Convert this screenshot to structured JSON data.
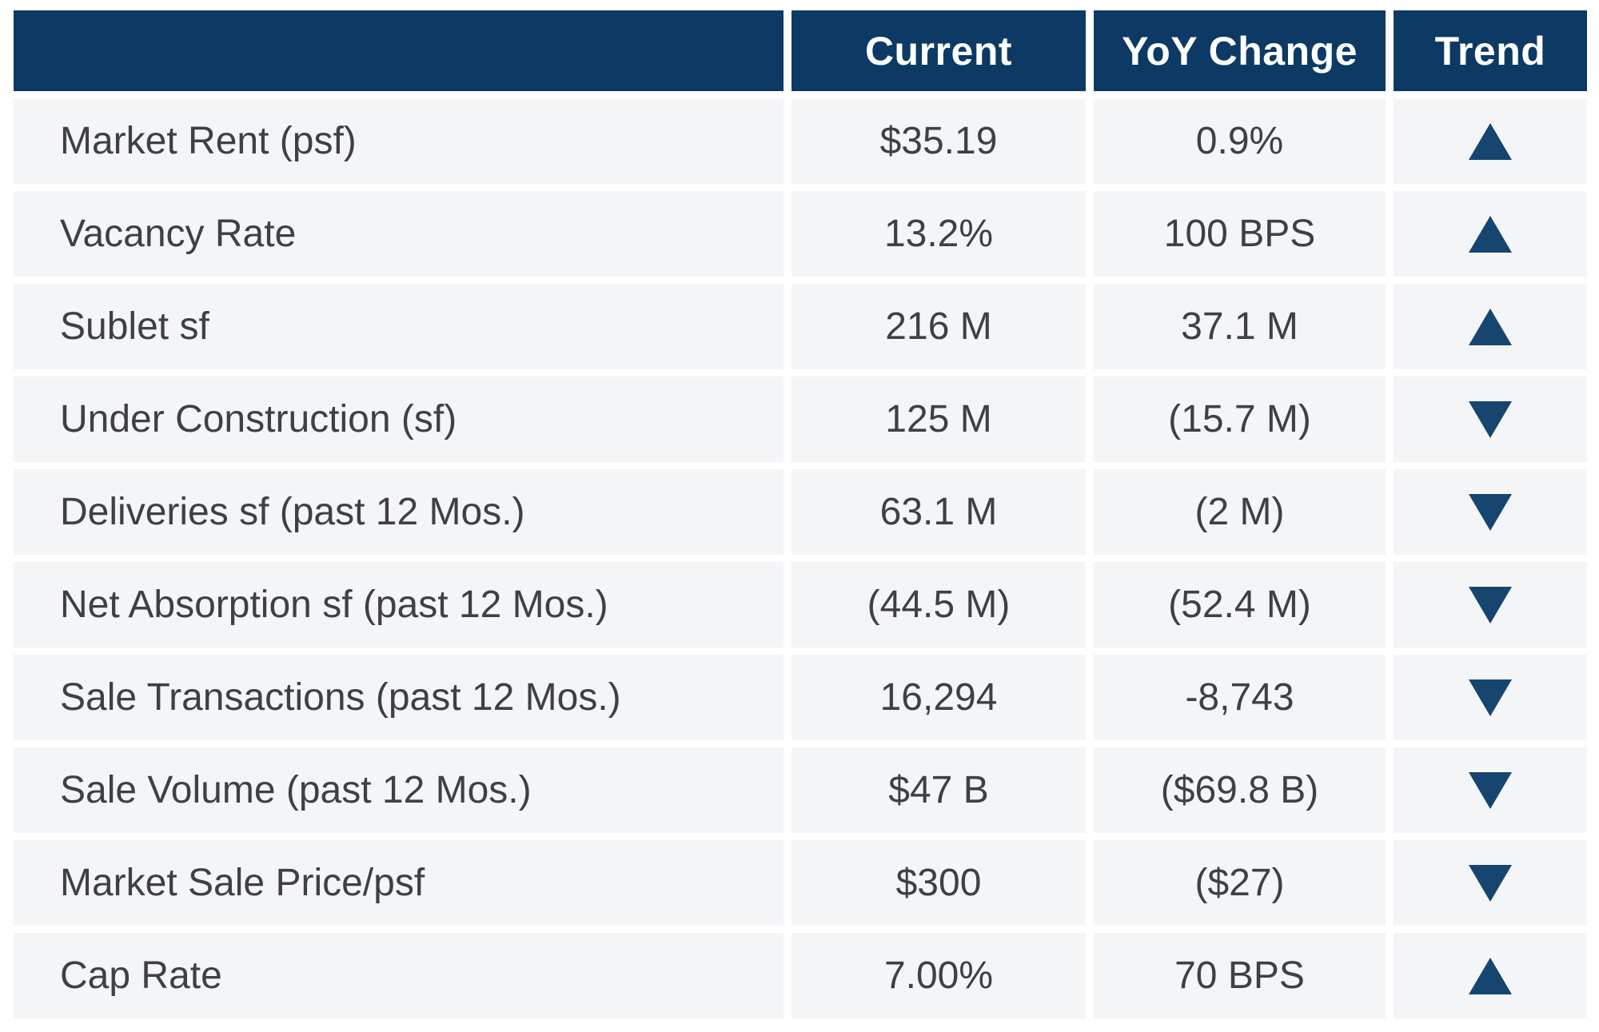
{
  "table": {
    "columns": [
      {
        "label": ""
      },
      {
        "label": "Current"
      },
      {
        "label": "YoY Change"
      },
      {
        "label": "Trend"
      }
    ],
    "rows": [
      {
        "label": "Market Rent (psf)",
        "current": "$35.19",
        "yoy": "0.9%",
        "trend": "up"
      },
      {
        "label": "Vacancy Rate",
        "current": "13.2%",
        "yoy": "100 BPS",
        "trend": "up"
      },
      {
        "label": "Sublet sf",
        "current": "216 M",
        "yoy": "37.1 M",
        "trend": "up"
      },
      {
        "label": "Under Construction (sf)",
        "current": "125 M",
        "yoy": "(15.7 M)",
        "trend": "down"
      },
      {
        "label": "Deliveries sf (past 12 Mos.)",
        "current": "63.1 M",
        "yoy": "(2 M)",
        "trend": "down"
      },
      {
        "label": "Net Absorption sf (past 12 Mos.)",
        "current": "(44.5 M)",
        "yoy": "(52.4 M)",
        "trend": "down"
      },
      {
        "label": "Sale Transactions (past 12 Mos.)",
        "current": "16,294",
        "yoy": "-8,743",
        "trend": "down"
      },
      {
        "label": "Sale Volume (past 12 Mos.)",
        "current": "$47 B",
        "yoy": "($69.8 B)",
        "trend": "down"
      },
      {
        "label": "Market Sale Price/psf",
        "current": "$300",
        "yoy": "($27)",
        "trend": "down"
      },
      {
        "label": "Cap Rate",
        "current": "7.00%",
        "yoy": "70 BPS",
        "trend": "up"
      }
    ]
  },
  "colors": {
    "header_bg": "#0c3a64",
    "header_text": "#ffffff",
    "row_bg": "#f4f5f7",
    "body_text": "#3f4043",
    "trend_icon": "#164570",
    "gap": "#ffffff"
  },
  "chart_data": {
    "type": "table",
    "title": "",
    "columns": [
      "",
      "Current",
      "YoY Change",
      "Trend"
    ],
    "rows": [
      [
        "Market Rent (psf)",
        "$35.19",
        "0.9%",
        "up"
      ],
      [
        "Vacancy Rate",
        "13.2%",
        "100 BPS",
        "up"
      ],
      [
        "Sublet sf",
        "216 M",
        "37.1 M",
        "up"
      ],
      [
        "Under Construction (sf)",
        "125 M",
        "(15.7 M)",
        "down"
      ],
      [
        "Deliveries sf (past 12 Mos.)",
        "63.1 M",
        "(2 M)",
        "down"
      ],
      [
        "Net Absorption sf (past 12 Mos.)",
        "(44.5 M)",
        "(52.4 M)",
        "down"
      ],
      [
        "Sale Transactions (past 12 Mos.)",
        "16,294",
        "-8,743",
        "down"
      ],
      [
        "Sale Volume (past 12 Mos.)",
        "$47 B",
        "($69.8 B)",
        "down"
      ],
      [
        "Market Sale Price/psf",
        "$300",
        "($27)",
        "down"
      ],
      [
        "Cap Rate",
        "7.00%",
        "70 BPS",
        "up"
      ]
    ]
  }
}
